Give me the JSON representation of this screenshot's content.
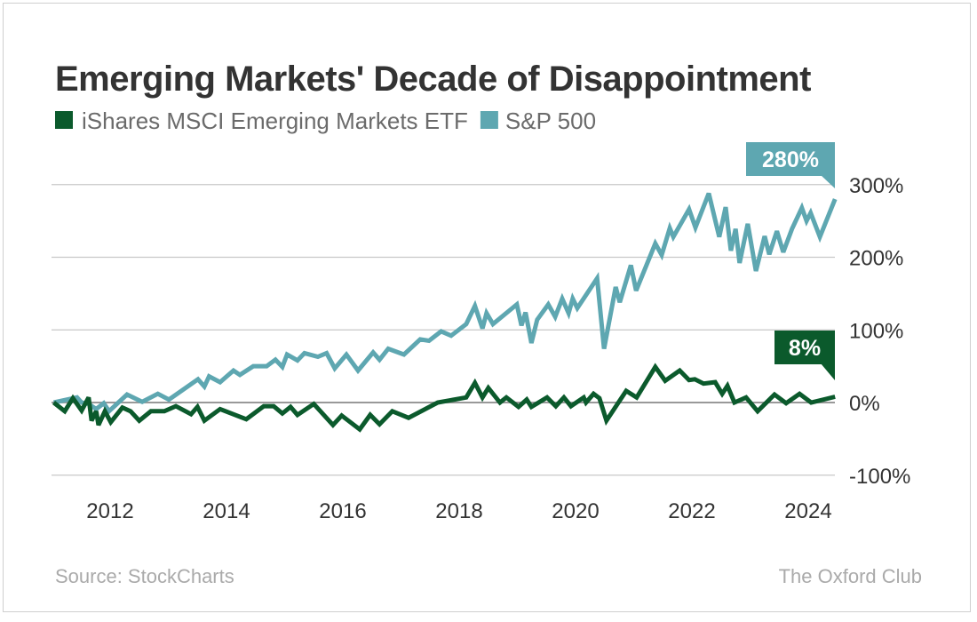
{
  "chart_data": {
    "type": "line",
    "title": "Emerging Markets' Decade of Disappointment",
    "xlabel": "",
    "ylabel": "",
    "xlim": [
      2011,
      2024.45
    ],
    "ylim": [
      -100,
      300
    ],
    "grid": true,
    "legend_position": "top-left",
    "x_ticks": [
      "2012",
      "2014",
      "2016",
      "2018",
      "2020",
      "2022",
      "2024"
    ],
    "y_ticks": [
      "300%",
      "200%",
      "100%",
      "0%",
      "-100%"
    ],
    "y_tick_values": [
      300,
      200,
      100,
      0,
      -100
    ],
    "x_tick_values": [
      2012,
      2014,
      2016,
      2018,
      2020,
      2022,
      2024
    ],
    "series": [
      {
        "name": "iShares MSCI Emerging Markets ETF",
        "color": "#0b5a2c",
        "end_label": "8%",
        "points": [
          [
            2011.0,
            0
          ],
          [
            2011.19,
            -12
          ],
          [
            2011.33,
            6
          ],
          [
            2011.48,
            -11
          ],
          [
            2011.6,
            7
          ],
          [
            2011.65,
            -25
          ],
          [
            2011.73,
            -12
          ],
          [
            2011.77,
            -31
          ],
          [
            2011.88,
            -12
          ],
          [
            2011.98,
            -27
          ],
          [
            2012.18,
            -7
          ],
          [
            2012.32,
            -12
          ],
          [
            2012.47,
            -25
          ],
          [
            2012.67,
            -12
          ],
          [
            2012.9,
            -12
          ],
          [
            2013.1,
            -5
          ],
          [
            2013.36,
            -16
          ],
          [
            2013.47,
            -6
          ],
          [
            2013.59,
            -25
          ],
          [
            2013.86,
            -9
          ],
          [
            2014.31,
            -23
          ],
          [
            2014.61,
            -5
          ],
          [
            2014.78,
            -5
          ],
          [
            2014.93,
            -15
          ],
          [
            2015.07,
            -6
          ],
          [
            2015.19,
            -17
          ],
          [
            2015.47,
            -2
          ],
          [
            2015.8,
            -31
          ],
          [
            2015.95,
            -18
          ],
          [
            2016.26,
            -37
          ],
          [
            2016.44,
            -17
          ],
          [
            2016.6,
            -30
          ],
          [
            2016.82,
            -12
          ],
          [
            2017.1,
            -21
          ],
          [
            2017.6,
            0
          ],
          [
            2018.09,
            7
          ],
          [
            2018.24,
            27
          ],
          [
            2018.37,
            7
          ],
          [
            2018.47,
            20
          ],
          [
            2018.67,
            0
          ],
          [
            2018.78,
            7
          ],
          [
            2018.99,
            -6
          ],
          [
            2019.13,
            4
          ],
          [
            2019.21,
            -6
          ],
          [
            2019.48,
            7
          ],
          [
            2019.63,
            -5
          ],
          [
            2019.77,
            7
          ],
          [
            2019.89,
            -5
          ],
          [
            2020.11,
            7
          ],
          [
            2020.15,
            0
          ],
          [
            2020.28,
            12
          ],
          [
            2020.38,
            6
          ],
          [
            2020.5,
            -25
          ],
          [
            2020.84,
            16
          ],
          [
            2021.02,
            7
          ],
          [
            2021.34,
            49
          ],
          [
            2021.51,
            30
          ],
          [
            2021.76,
            44
          ],
          [
            2021.92,
            31
          ],
          [
            2022.02,
            32
          ],
          [
            2022.17,
            26
          ],
          [
            2022.37,
            28
          ],
          [
            2022.49,
            12
          ],
          [
            2022.58,
            23
          ],
          [
            2022.7,
            0
          ],
          [
            2022.9,
            7
          ],
          [
            2023.1,
            -12
          ],
          [
            2023.39,
            11
          ],
          [
            2023.59,
            -1
          ],
          [
            2023.82,
            12
          ],
          [
            2024.02,
            0
          ],
          [
            2024.43,
            8
          ]
        ]
      },
      {
        "name": "S&P 500",
        "color": "#5ea7b1",
        "end_label": "280%",
        "points": [
          [
            2011.0,
            0
          ],
          [
            2011.4,
            7
          ],
          [
            2011.48,
            0
          ],
          [
            2011.6,
            -2
          ],
          [
            2011.73,
            -9
          ],
          [
            2011.86,
            -1
          ],
          [
            2011.95,
            -12
          ],
          [
            2012.26,
            11
          ],
          [
            2012.52,
            1
          ],
          [
            2012.79,
            12
          ],
          [
            2012.98,
            4
          ],
          [
            2013.48,
            32
          ],
          [
            2013.59,
            22
          ],
          [
            2013.67,
            36
          ],
          [
            2013.86,
            28
          ],
          [
            2014.09,
            44
          ],
          [
            2014.2,
            38
          ],
          [
            2014.43,
            50
          ],
          [
            2014.66,
            50
          ],
          [
            2014.81,
            59
          ],
          [
            2014.93,
            49
          ],
          [
            2015.01,
            66
          ],
          [
            2015.19,
            58
          ],
          [
            2015.31,
            68
          ],
          [
            2015.54,
            63
          ],
          [
            2015.69,
            68
          ],
          [
            2015.83,
            47
          ],
          [
            2016.03,
            66
          ],
          [
            2016.23,
            44
          ],
          [
            2016.49,
            69
          ],
          [
            2016.6,
            59
          ],
          [
            2016.75,
            74
          ],
          [
            2017.02,
            66
          ],
          [
            2017.3,
            87
          ],
          [
            2017.45,
            85
          ],
          [
            2017.66,
            98
          ],
          [
            2017.83,
            92
          ],
          [
            2018.09,
            108
          ],
          [
            2018.24,
            133
          ],
          [
            2018.37,
            102
          ],
          [
            2018.44,
            123
          ],
          [
            2018.55,
            108
          ],
          [
            2018.96,
            135
          ],
          [
            2019.04,
            106
          ],
          [
            2019.11,
            124
          ],
          [
            2019.21,
            82
          ],
          [
            2019.31,
            114
          ],
          [
            2019.5,
            135
          ],
          [
            2019.62,
            118
          ],
          [
            2019.74,
            143
          ],
          [
            2019.85,
            123
          ],
          [
            2019.92,
            143
          ],
          [
            2020.0,
            130
          ],
          [
            2020.34,
            171
          ],
          [
            2020.46,
            74
          ],
          [
            2020.66,
            159
          ],
          [
            2020.73,
            138
          ],
          [
            2020.92,
            189
          ],
          [
            2021.01,
            154
          ],
          [
            2021.34,
            219
          ],
          [
            2021.45,
            203
          ],
          [
            2021.59,
            240
          ],
          [
            2021.65,
            228
          ],
          [
            2021.92,
            266
          ],
          [
            2022.03,
            241
          ],
          [
            2022.26,
            288
          ],
          [
            2022.44,
            228
          ],
          [
            2022.55,
            269
          ],
          [
            2022.64,
            209
          ],
          [
            2022.72,
            239
          ],
          [
            2022.79,
            192
          ],
          [
            2022.93,
            246
          ],
          [
            2023.07,
            181
          ],
          [
            2023.22,
            229
          ],
          [
            2023.3,
            204
          ],
          [
            2023.43,
            236
          ],
          [
            2023.54,
            207
          ],
          [
            2023.69,
            239
          ],
          [
            2023.86,
            268
          ],
          [
            2023.94,
            250
          ],
          [
            2024.01,
            261
          ],
          [
            2024.17,
            228
          ],
          [
            2024.43,
            280
          ]
        ]
      }
    ],
    "source": "Source: StockCharts",
    "credit": "The Oxford Club"
  }
}
